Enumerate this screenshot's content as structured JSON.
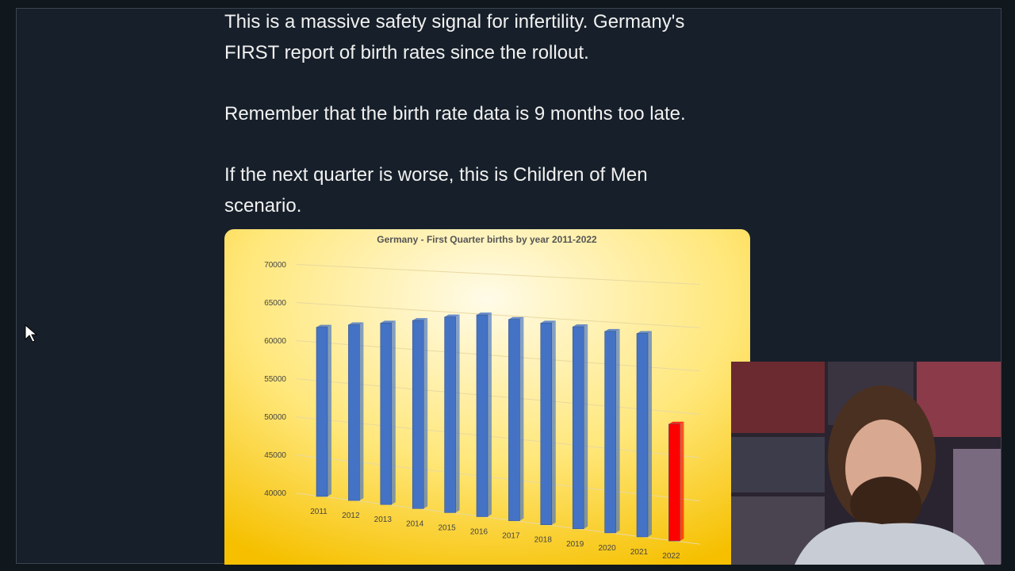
{
  "post": {
    "paragraphs": [
      "This is a massive safety signal for infertility. Germany's FIRST report of birth rates since the rollout.",
      "Remember that the birth rate data is 9 months too late.",
      "If the next quarter is worse, this is Children of Men scenario."
    ]
  },
  "chart_data": {
    "type": "bar",
    "title": "Germany - First Quarter births by year 2011-2022",
    "categories": [
      "2011",
      "2012",
      "2013",
      "2014",
      "2015",
      "2016",
      "2017",
      "2018",
      "2019",
      "2020",
      "2021",
      "2022"
    ],
    "values": [
      62000,
      62600,
      63100,
      63700,
      64400,
      64900,
      64600,
      64400,
      64200,
      63900,
      63900,
      53600
    ],
    "colors": [
      "#4472c4",
      "#4472c4",
      "#4472c4",
      "#4472c4",
      "#4472c4",
      "#4472c4",
      "#4472c4",
      "#4472c4",
      "#4472c4",
      "#4472c4",
      "#4472c4",
      "#ff0000"
    ],
    "ylim": [
      40000,
      70000
    ],
    "yticks": [
      40000,
      45000,
      50000,
      55000,
      60000,
      65000,
      70000
    ],
    "grid": true
  }
}
